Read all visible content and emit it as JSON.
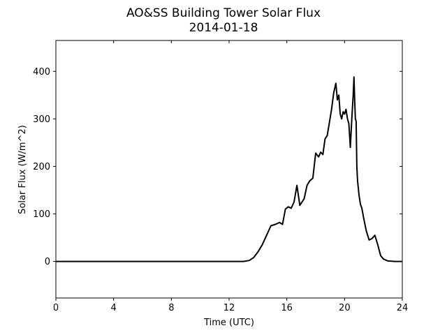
{
  "chart_data": {
    "type": "line",
    "title": "AO&SS Building Tower Solar Flux",
    "subtitle": "2014-01-18",
    "xlabel": "Time (UTC)",
    "ylabel": "Solar Flux (W/m^2)",
    "xlim": [
      0,
      24
    ],
    "ylim": [
      -77,
      465
    ],
    "xticks": [
      0,
      4,
      8,
      12,
      16,
      20,
      24
    ],
    "yticks": [
      0,
      100,
      200,
      300,
      400
    ],
    "grid": false,
    "line_color": "#000000",
    "series": [
      {
        "x": [
          0,
          4,
          8,
          12,
          13.0,
          13.4,
          13.7,
          14.0,
          14.3,
          14.6,
          14.9,
          15.2,
          15.5,
          15.7,
          15.9,
          16.1,
          16.3,
          16.5,
          16.7,
          16.9,
          17.05,
          17.2,
          17.4,
          17.6,
          17.8,
          18.0,
          18.2,
          18.35,
          18.5,
          18.65,
          18.8,
          18.95,
          19.1,
          19.25,
          19.4,
          19.5,
          19.6,
          19.7,
          19.8,
          19.9,
          20.0,
          20.1,
          20.2,
          20.3,
          20.4,
          20.5,
          20.6,
          20.65,
          20.7,
          20.75,
          20.8,
          20.85,
          20.9,
          20.95,
          21.0,
          21.1,
          21.2,
          21.3,
          21.5,
          21.7,
          21.9,
          22.1,
          22.3,
          22.5,
          22.7,
          23.0,
          23.5,
          24
        ],
        "y": [
          0,
          0,
          0,
          0,
          0,
          2,
          8,
          20,
          35,
          55,
          75,
          78,
          82,
          78,
          110,
          115,
          112,
          125,
          160,
          118,
          125,
          132,
          160,
          170,
          175,
          228,
          220,
          230,
          225,
          258,
          265,
          292,
          320,
          355,
          375,
          340,
          350,
          310,
          300,
          315,
          310,
          320,
          300,
          290,
          240,
          300,
          350,
          388,
          340,
          300,
          295,
          200,
          170,
          155,
          140,
          120,
          112,
          95,
          65,
          45,
          48,
          55,
          35,
          12,
          5,
          1,
          0,
          0
        ]
      }
    ]
  }
}
